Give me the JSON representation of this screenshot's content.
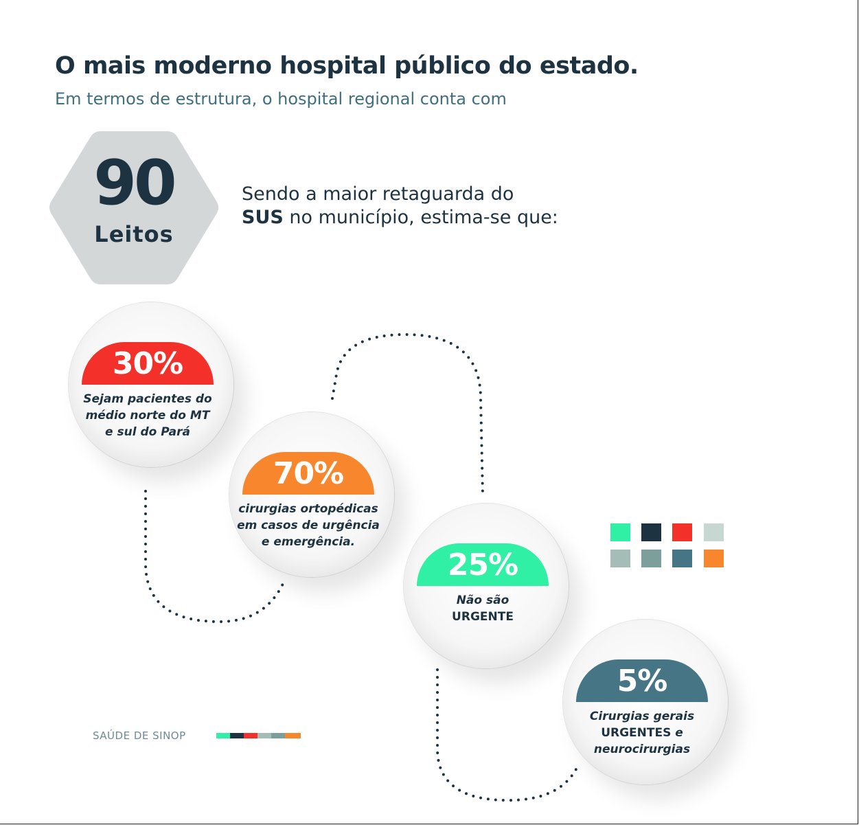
{
  "header": {
    "title": "O mais moderno hospital público do estado.",
    "subtitle": "Em termos de estrutura, o hospital regional conta com"
  },
  "beds": {
    "number": "90",
    "label": "Leitos"
  },
  "intro": {
    "line1": "Sendo a maior retaguarda do",
    "bold": "SUS",
    "line2_rest": " no município, estima-se que:"
  },
  "stats": [
    {
      "value": "30%",
      "line1": "Sejam pacientes do",
      "line2": "médio norte do MT",
      "line3": "e sul do Pará",
      "color": "#f3302a"
    },
    {
      "value": "70%",
      "line1": "cirurgias ortopédicas",
      "line2": "em casos de urgência",
      "line3": "e emergência.",
      "color": "#f7862d"
    },
    {
      "value": "25%",
      "line1": "Não são",
      "line2": "URGENTE",
      "color": "#2ff0a4"
    },
    {
      "value": "5%",
      "line1": "Cirurgias gerais",
      "line2": "URGENTES",
      "line2_rest": " e",
      "line3": "neurocirurgias",
      "color": "#467586"
    }
  ],
  "palette": [
    "#2ff0a4",
    "#1e3341",
    "#f3302a",
    "#c7d7d2",
    "#a4bdb7",
    "#7c9f9c",
    "#467586",
    "#f7862d"
  ],
  "footer": {
    "label": "SAÚDE DE SINOP"
  }
}
